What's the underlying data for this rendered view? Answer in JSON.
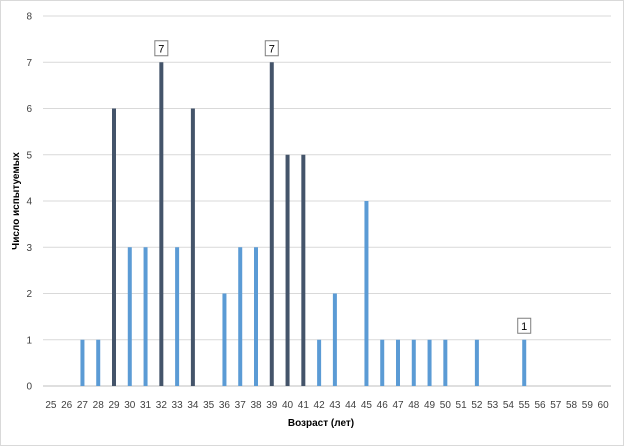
{
  "chart_data": {
    "type": "bar",
    "xlabel": "Возраст (лет)",
    "ylabel": "Число испытуемых",
    "ylim": [
      0,
      8
    ],
    "yticks": [
      0,
      1,
      2,
      3,
      4,
      5,
      6,
      7,
      8
    ],
    "grid": true,
    "legend": "none",
    "categories": [
      "25",
      "26",
      "27",
      "28",
      "29",
      "30",
      "31",
      "32",
      "33",
      "34",
      "35",
      "36",
      "37",
      "38",
      "39",
      "40",
      "41",
      "42",
      "43",
      "44",
      "45",
      "46",
      "47",
      "48",
      "49",
      "50",
      "51",
      "52",
      "53",
      "54",
      "55",
      "56",
      "57",
      "58",
      "59",
      "60"
    ],
    "values": [
      0,
      0,
      1,
      1,
      6,
      3,
      3,
      7,
      3,
      6,
      0,
      2,
      3,
      3,
      7,
      5,
      5,
      1,
      2,
      0,
      4,
      1,
      1,
      1,
      1,
      1,
      0,
      1,
      0,
      0,
      1,
      0,
      0,
      0,
      0,
      0
    ],
    "highlighted_categories": [
      "29",
      "32",
      "34",
      "39",
      "40",
      "41"
    ],
    "data_labels": [
      {
        "category": "32",
        "text": "7"
      },
      {
        "category": "39",
        "text": "7"
      },
      {
        "category": "55",
        "text": "1"
      }
    ],
    "colors": {
      "bar": "#5b9bd5",
      "bar_highlight": "#44546a",
      "grid": "#d9d9d9",
      "axis": "#bfbfbf"
    }
  }
}
